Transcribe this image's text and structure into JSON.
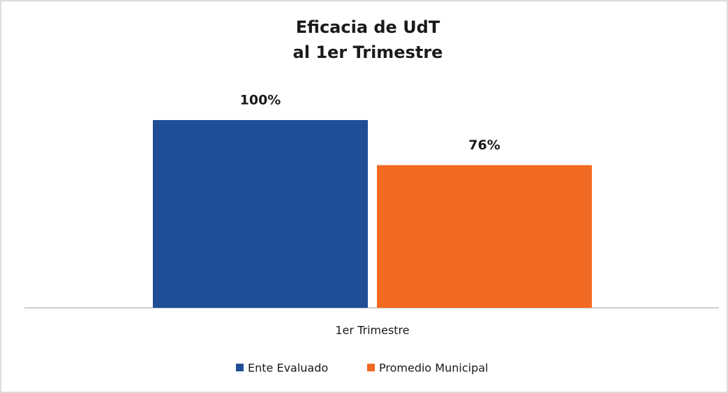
{
  "chart_data": {
    "type": "bar",
    "title": [
      "Eficacia de UdT",
      "al 1er Trimestre"
    ],
    "categories": [
      "1er Trimestre"
    ],
    "series": [
      {
        "name": "Ente Evaluado",
        "color": "#1f4e97",
        "values": [
          100
        ],
        "value_labels": [
          "100%"
        ]
      },
      {
        "name": "Promedio Municipal",
        "color": "#f26a21",
        "values": [
          76
        ],
        "value_labels": [
          "76%"
        ]
      }
    ],
    "ylim": [
      0,
      100
    ]
  }
}
